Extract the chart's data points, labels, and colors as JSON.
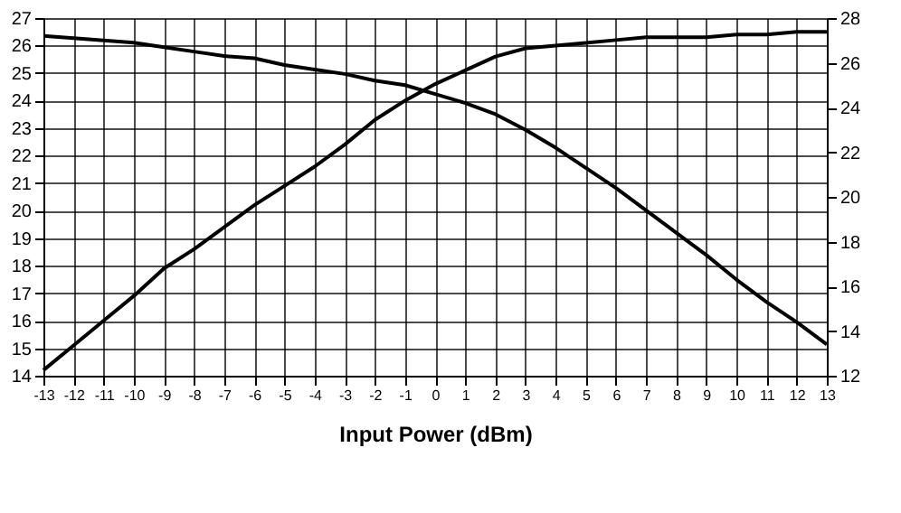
{
  "chart_data": {
    "type": "line",
    "xlabel": "Input Power (dBm)",
    "x": [
      -13,
      -12,
      -11,
      -10,
      -9,
      -8,
      -7,
      -6,
      -5,
      -4,
      -3,
      -2,
      -1,
      0,
      1,
      2,
      3,
      4,
      5,
      6,
      7,
      8,
      9,
      10,
      11,
      12,
      13
    ],
    "series": [
      {
        "color": "#000000",
        "values": [
          14.2,
          15.1,
          16.0,
          16.9,
          17.9,
          18.6,
          19.4,
          20.2,
          20.9,
          21.6,
          22.4,
          23.3,
          24.0,
          24.6,
          25.1,
          25.6,
          25.9,
          26.0,
          26.1,
          26.2,
          26.3,
          26.3,
          26.3,
          26.4,
          26.4,
          26.5,
          26.5
        ]
      },
      {
        "color": "#000000",
        "axis": "y2",
        "values": [
          27.2,
          27.1,
          27.0,
          26.9,
          26.7,
          26.5,
          26.3,
          26.2,
          25.9,
          25.7,
          25.5,
          25.2,
          25.0,
          24.6,
          24.2,
          23.7,
          23.0,
          22.2,
          21.3,
          20.4,
          19.4,
          18.4,
          17.4,
          16.3,
          15.3,
          14.4,
          13.4
        ]
      }
    ],
    "xlim": [
      -13,
      13
    ],
    "xticks": [
      -13,
      -12,
      -11,
      -10,
      -9,
      -8,
      -7,
      -6,
      -5,
      -4,
      -3,
      -2,
      -1,
      0,
      1,
      2,
      3,
      4,
      5,
      6,
      7,
      8,
      9,
      10,
      11,
      12,
      13
    ],
    "ylim": [
      14,
      27
    ],
    "yticks": [
      14,
      15,
      16,
      17,
      18,
      19,
      20,
      21,
      22,
      23,
      24,
      25,
      26,
      27
    ],
    "y2lim": [
      12,
      28
    ],
    "y2ticks": [
      12,
      14,
      16,
      18,
      20,
      22,
      24,
      26,
      28
    ],
    "grid": true,
    "legend": false,
    "marker": "none",
    "line_style": "solid"
  }
}
